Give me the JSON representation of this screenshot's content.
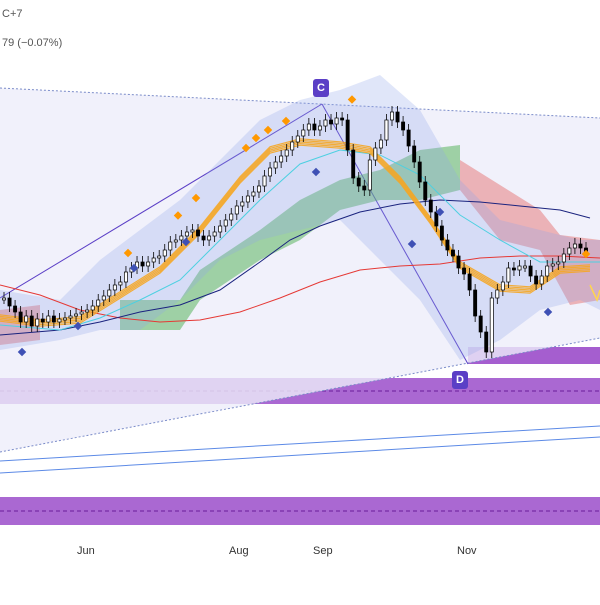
{
  "header": {
    "symbol_fragment": "C+7",
    "change_fragment": "79 (−0.07%)"
  },
  "chart_data": {
    "type": "candlestick",
    "x_tick_labels": [
      "Jun",
      "Aug",
      "Sep",
      "Nov"
    ],
    "pattern_points": [
      {
        "label": "C",
        "position": "peak-august-september"
      },
      {
        "label": "D",
        "position": "trough-november"
      }
    ],
    "series_styles": {
      "candles": "#000000",
      "ema_fast": "#f5a623",
      "sma_cyan": "#4dd0e1",
      "sma_blue": "#1a237e",
      "sma_red": "#e53935",
      "cloud_bull": "#4caf50",
      "cloud_bear": "#e57373",
      "bands": "#90a4e8",
      "zones": "#9b4dca",
      "marker_buy": "#3f51b5",
      "marker_sell": "#ff9800",
      "pattern_box": "#5b3fc6"
    },
    "candles_y": [
      298,
      306,
      312,
      322,
      316,
      326,
      319,
      322,
      316,
      322,
      319,
      318,
      316,
      314,
      312,
      310,
      306,
      300,
      296,
      290,
      285,
      282,
      272,
      268,
      262,
      266,
      262,
      258,
      256,
      250,
      242,
      240,
      236,
      232,
      230,
      236,
      240,
      236,
      232,
      226,
      220,
      214,
      206,
      202,
      196,
      192,
      186,
      176,
      168,
      162,
      156,
      150,
      142,
      136,
      130,
      124,
      130,
      126,
      120,
      124,
      118,
      120,
      150,
      178,
      186,
      190,
      160,
      148,
      140,
      120,
      112,
      122,
      130,
      146,
      162,
      182,
      200,
      212,
      226,
      240,
      250,
      256,
      268,
      274,
      290,
      316,
      332,
      352,
      298,
      290,
      282,
      268,
      270,
      266,
      266,
      276,
      284,
      276,
      266,
      264,
      262,
      254,
      248,
      244,
      248,
      252
    ]
  }
}
